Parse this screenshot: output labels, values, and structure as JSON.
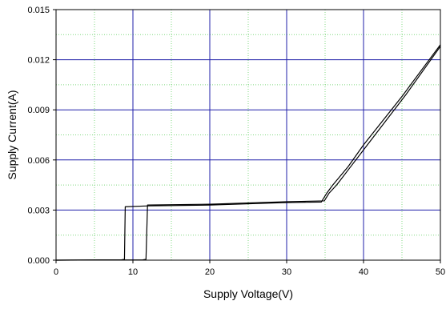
{
  "chart_data": {
    "type": "line",
    "title": "",
    "xlabel": "Supply Voltage(V)",
    "ylabel": "Supply Current(A)",
    "xlim": [
      0,
      50
    ],
    "ylim": [
      0,
      0.015
    ],
    "x_ticks": [
      0,
      10,
      20,
      30,
      40,
      50
    ],
    "y_ticks": [
      0,
      0.003,
      0.006,
      0.009,
      0.012,
      0.015
    ],
    "x_tick_labels": [
      "0",
      "10",
      "20",
      "30",
      "40",
      "50"
    ],
    "y_tick_labels": [
      "0.000",
      "0.003",
      "0.006",
      "0.009",
      "0.012",
      "0.015"
    ],
    "grid": {
      "major": true,
      "minor": true,
      "major_color": "#1f1fa8",
      "minor_color": "#7fd87f"
    },
    "legend": "none",
    "series": [
      {
        "color": "#000000",
        "points": [
          [
            0,
            0
          ],
          [
            8.5,
            2e-05
          ],
          [
            8.9,
            5e-05
          ],
          [
            9.0,
            0.0032
          ],
          [
            12.0,
            0.00325
          ],
          [
            20,
            0.0033
          ],
          [
            30,
            0.00345
          ],
          [
            34.5,
            0.00348
          ],
          [
            35.2,
            0.004
          ],
          [
            36.0,
            0.0045
          ],
          [
            38.0,
            0.0056
          ],
          [
            40.0,
            0.0069
          ],
          [
            45.0,
            0.0098
          ],
          [
            50.0,
            0.0129
          ]
        ]
      },
      {
        "color": "#000000",
        "points": [
          [
            0,
            0
          ],
          [
            11.3,
            2e-05
          ],
          [
            11.7,
            5e-05
          ],
          [
            11.9,
            0.0033
          ],
          [
            20,
            0.00335
          ],
          [
            30,
            0.0035
          ],
          [
            34.9,
            0.00355
          ],
          [
            35.5,
            0.004
          ],
          [
            36.5,
            0.0045
          ],
          [
            38.5,
            0.0057
          ],
          [
            40.5,
            0.0069
          ],
          [
            45.5,
            0.0099
          ],
          [
            50.0,
            0.0128
          ]
        ]
      }
    ]
  }
}
